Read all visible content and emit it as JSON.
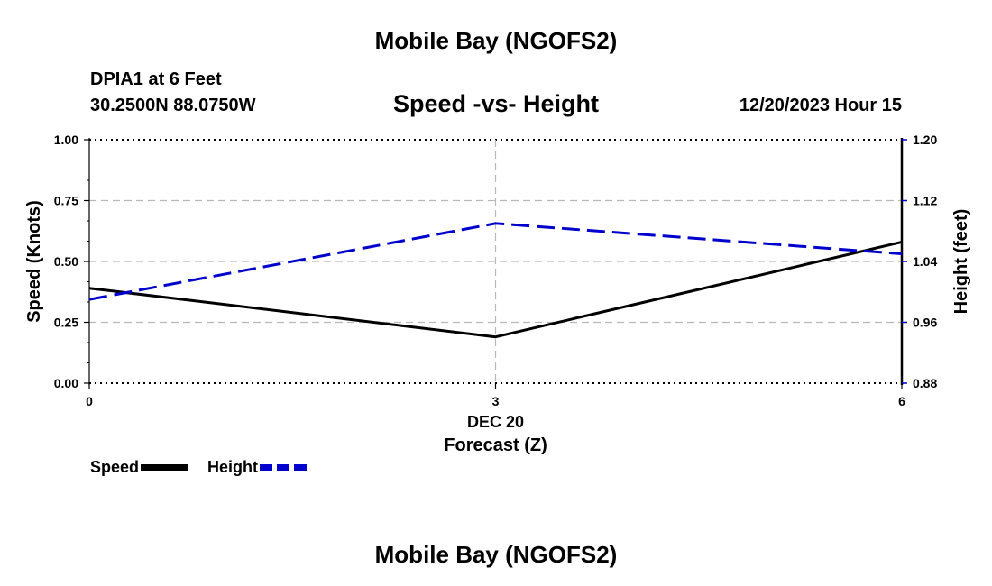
{
  "page": {
    "title_top": "Mobile Bay (NGOFS2)",
    "title_bottom": "Mobile Bay (NGOFS2)",
    "station": "DPIA1 at 6 Feet",
    "coords": "30.2500N  88.0750W",
    "datetime": "12/20/2023 Hour 15"
  },
  "colors": {
    "speed": "#000000",
    "height": "#0000cc",
    "grid": "#b8b8b8"
  },
  "chart_data": {
    "type": "line",
    "title": "Speed -vs- Height",
    "xlabel": "Forecast (Z)",
    "x_sublabel": "DEC 20",
    "ylabel_left": "Speed (Knots)",
    "ylabel_right": "Height (feet)",
    "x": [
      0,
      3,
      6
    ],
    "x_ticks": [
      "0",
      "3",
      "6"
    ],
    "xlim": [
      0,
      6
    ],
    "ylim_left": [
      0,
      1.0
    ],
    "ylim_right": [
      0.88,
      1.2
    ],
    "y_ticks_left": [
      "0.00",
      "0.25",
      "0.50",
      "0.75",
      "1.00"
    ],
    "y_ticks_right": [
      "0.88",
      "0.96",
      "1.04",
      "1.12",
      "1.20"
    ],
    "grid": true,
    "series": [
      {
        "name": "Speed",
        "axis": "left",
        "style": "solid",
        "values": [
          0.39,
          0.19,
          0.58
        ]
      },
      {
        "name": "Height",
        "axis": "right",
        "style": "dashed",
        "values": [
          0.99,
          1.09,
          1.05
        ]
      }
    ]
  },
  "legend": {
    "speed_label": "Speed",
    "height_label": "Height"
  }
}
